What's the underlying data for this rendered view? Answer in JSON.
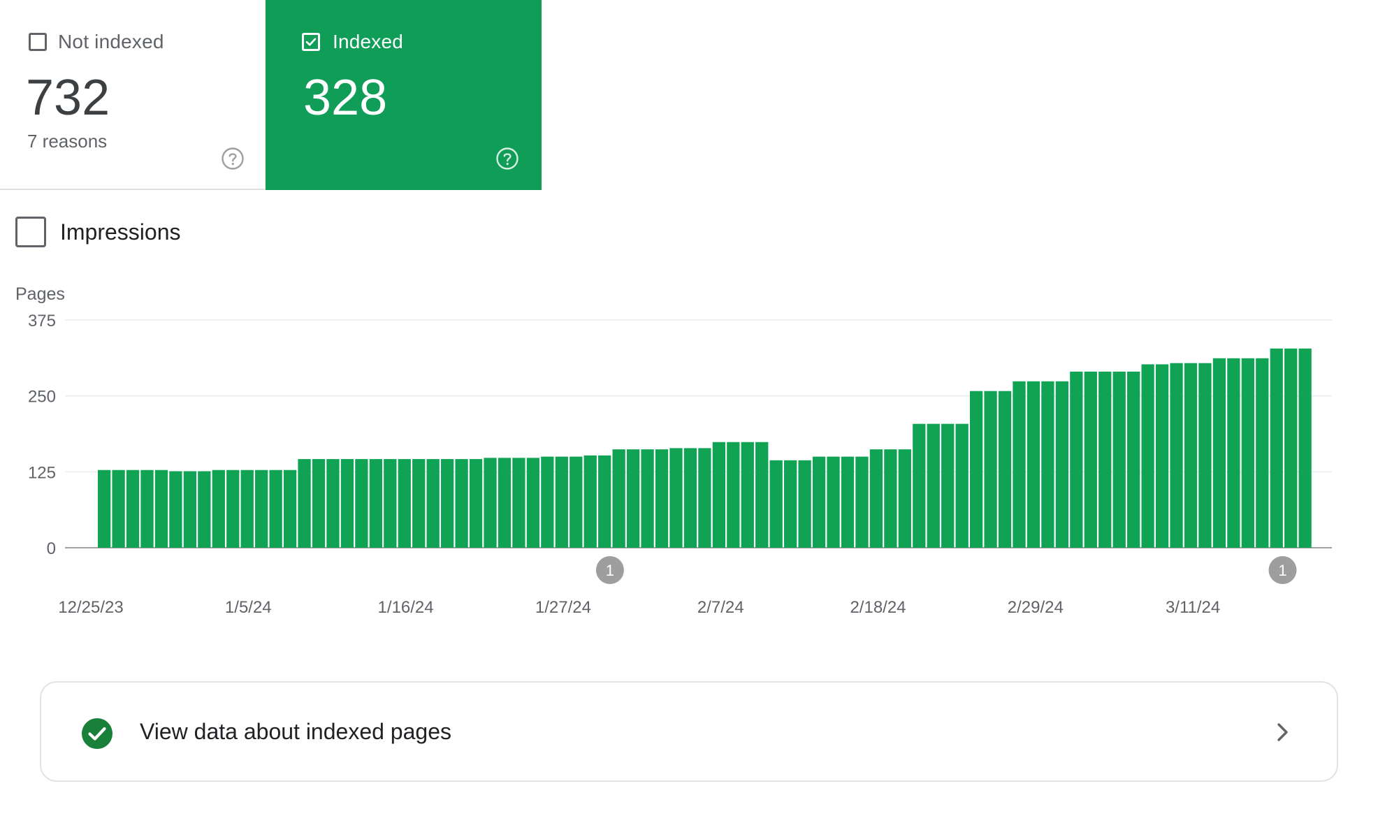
{
  "cards": {
    "not_indexed": {
      "label": "Not indexed",
      "value": "732",
      "sub": "7 reasons",
      "checked": false
    },
    "indexed": {
      "label": "Indexed",
      "value": "328",
      "checked": true
    }
  },
  "impressions": {
    "label": "Impressions",
    "checked": false
  },
  "colors": {
    "accent": "#0f9d58",
    "bar": "#10a354",
    "annotation": "#9e9e9e",
    "grid": "#e8eaed"
  },
  "icons": {
    "help": "help-circle-icon",
    "check": "check-circle-icon",
    "chevron": "chevron-right-icon"
  },
  "chart_data": {
    "type": "bar",
    "ylabel": "Pages",
    "ylim": [
      0,
      375
    ],
    "yticks": [
      "375",
      "250",
      "125",
      "0"
    ],
    "xtick_labels": [
      "12/25/23",
      "1/5/24",
      "1/16/24",
      "1/27/24",
      "2/7/24",
      "2/18/24",
      "2/29/24",
      "3/11/24"
    ],
    "series": [
      {
        "values": [
          128,
          128,
          128,
          128,
          128,
          126,
          126,
          126,
          128,
          128,
          128,
          128,
          128,
          128,
          146,
          146,
          146,
          146,
          146,
          146,
          146,
          146,
          146,
          146,
          146,
          146,
          146,
          148,
          148,
          148,
          148,
          150,
          150,
          150,
          152,
          152,
          162,
          162,
          162,
          162,
          164,
          164,
          164,
          174,
          174,
          174,
          174,
          144,
          144,
          144,
          150,
          150,
          150,
          150,
          162,
          162,
          162,
          204,
          204,
          204,
          204,
          258,
          258,
          258,
          274,
          274,
          274,
          274,
          290,
          290,
          290,
          290,
          290,
          302,
          302,
          304,
          304,
          304,
          312,
          312,
          312,
          312,
          328,
          328,
          328
        ]
      }
    ],
    "annotations": [
      {
        "label": "1",
        "date": "1/29/24"
      },
      {
        "label": "1",
        "date": "3/16/24"
      }
    ],
    "grid": true
  },
  "view_link": {
    "label": "View data about indexed pages"
  }
}
